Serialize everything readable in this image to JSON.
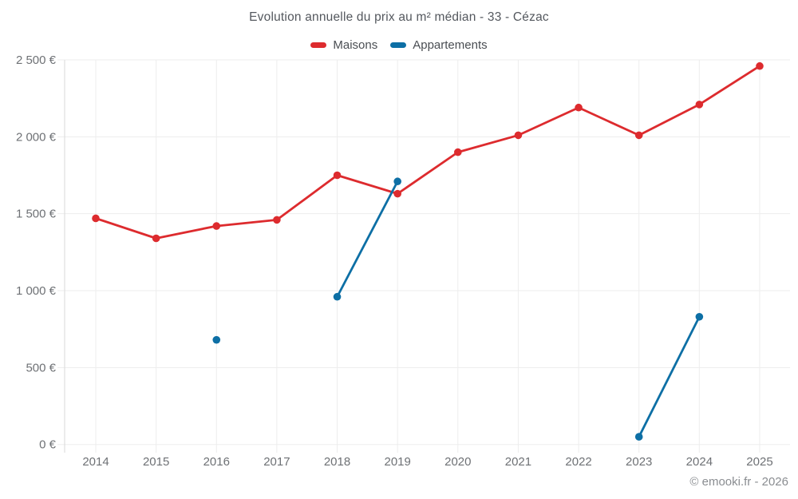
{
  "title": "Evolution annuelle du prix au m² médian - 33 - Cézac",
  "footer": "© emooki.fr - 2026",
  "legend": [
    {
      "label": "Maisons",
      "color": "#dd2b2e"
    },
    {
      "label": "Appartements",
      "color": "#0d6fa5"
    }
  ],
  "colors": {
    "maisons": "#dd2b2e",
    "appartements": "#0d6fa5",
    "gridline": "#ededed",
    "axis": "#d9d9d9",
    "tick_text": "#6e7175"
  },
  "chart_data": {
    "type": "line",
    "title": "Evolution annuelle du prix au m² médian - 33 - Cézac",
    "x": [
      2014,
      2015,
      2016,
      2017,
      2018,
      2019,
      2020,
      2021,
      2022,
      2023,
      2024,
      2025
    ],
    "series": [
      {
        "name": "Maisons",
        "color": "#dd2b2e",
        "values": [
          1470,
          1340,
          1420,
          1460,
          1750,
          1630,
          1900,
          2010,
          2190,
          2010,
          2210,
          2460
        ]
      },
      {
        "name": "Appartements",
        "color": "#0d6fa5",
        "values": [
          null,
          null,
          680,
          null,
          960,
          1710,
          null,
          null,
          null,
          50,
          830,
          null
        ]
      }
    ],
    "xlabel": "",
    "ylabel": "",
    "ylim": [
      0,
      2500
    ],
    "ytick_step": 500,
    "ytick_labels": [
      "0 €",
      "500 €",
      "1 000 €",
      "1 500 €",
      "2 000 €",
      "2 500 €"
    ],
    "grid": true,
    "legend_position": "top",
    "currency": "€"
  }
}
